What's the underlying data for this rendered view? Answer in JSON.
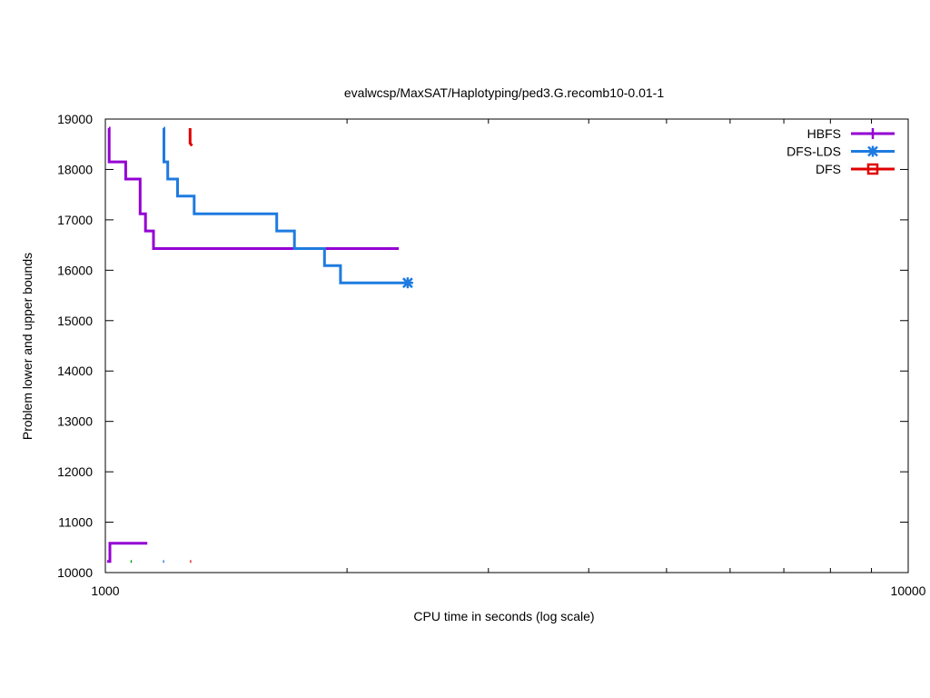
{
  "chart_data": {
    "type": "line",
    "title": "evalwcsp/MaxSAT/Haplotyping/ped3.G.recomb10-0.01-1",
    "xlabel": "CPU time in seconds (log scale)",
    "ylabel": "Problem lower and upper bounds",
    "xscale": "log",
    "xlim": [
      1000,
      10000
    ],
    "ylim": [
      10000,
      19000
    ],
    "x_tick_labels": [
      "1000",
      "10000"
    ],
    "x_minor_ticks": [
      2000,
      3000,
      4000,
      5000,
      6000,
      7000,
      8000,
      9000
    ],
    "y_ticks": [
      10000,
      11000,
      12000,
      13000,
      14000,
      15000,
      16000,
      17000,
      18000,
      19000
    ],
    "legend_position": "top-right",
    "series": [
      {
        "name": "HBFS",
        "color": "#9400d3",
        "marker": "plus",
        "upper": [
          [
            1010,
            18820
          ],
          [
            1011,
            18820
          ],
          [
            1011,
            18150
          ],
          [
            1060,
            18150
          ],
          [
            1060,
            17810
          ],
          [
            1105,
            17810
          ],
          [
            1105,
            17120
          ],
          [
            1122,
            17120
          ],
          [
            1122,
            16780
          ],
          [
            1148,
            16780
          ],
          [
            1148,
            16430
          ],
          [
            2320,
            16430
          ]
        ],
        "lower": [
          [
            1005,
            10220
          ],
          [
            1013,
            10220
          ],
          [
            1013,
            10580
          ],
          [
            1128,
            10580
          ]
        ]
      },
      {
        "name": "DFS-LDS",
        "color": "#1e7be0",
        "marker": "star",
        "upper": [
          [
            1182,
            18820
          ],
          [
            1183,
            18820
          ],
          [
            1183,
            18150
          ],
          [
            1196,
            18150
          ],
          [
            1196,
            17810
          ],
          [
            1230,
            17810
          ],
          [
            1230,
            17470
          ],
          [
            1290,
            17470
          ],
          [
            1290,
            17120
          ],
          [
            1635,
            17120
          ],
          [
            1635,
            16780
          ],
          [
            1720,
            16780
          ],
          [
            1720,
            16430
          ],
          [
            1875,
            16430
          ],
          [
            1875,
            16090
          ],
          [
            1963,
            16090
          ],
          [
            1963,
            15750
          ],
          [
            2380,
            15750
          ]
        ],
        "lower": [
          [
            1180,
            10220
          ],
          [
            1184,
            10220
          ]
        ],
        "final_marker": [
          2380,
          15750
        ]
      },
      {
        "name": "DFS",
        "color": "#e00000",
        "marker": "square",
        "upper": [
          [
            1275,
            18820
          ],
          [
            1275,
            18520
          ],
          [
            1282,
            18470
          ]
        ],
        "lower": [
          [
            1275,
            10220
          ],
          [
            1279,
            10220
          ]
        ]
      },
      {
        "name": "",
        "color": "#009e00",
        "marker": "none",
        "upper": [],
        "lower": [
          [
            1075,
            10220
          ],
          [
            1079,
            10220
          ]
        ]
      }
    ]
  }
}
